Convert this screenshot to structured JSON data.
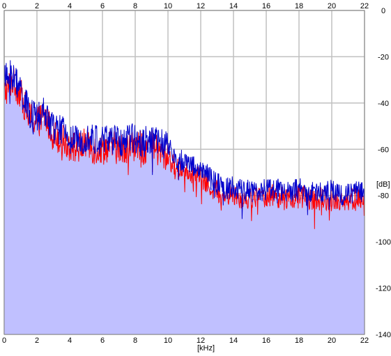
{
  "chart_data": {
    "type": "line",
    "title": "",
    "xlabel": "[kHz]",
    "ylabel": "[dB]",
    "xlim": [
      0,
      22
    ],
    "ylim": [
      -140,
      0
    ],
    "x_ticks": [
      "0",
      "2",
      "4",
      "6",
      "8",
      "10",
      "12",
      "14",
      "16",
      "18",
      "20",
      "22"
    ],
    "y_ticks": [
      "0",
      "-20",
      "-40",
      "-60",
      "-80",
      "-100",
      "-120",
      "-140"
    ],
    "grid": true,
    "legend": "none",
    "series": [
      {
        "color": "#ff0000",
        "x": [
          0,
          0.5,
          1,
          1.5,
          2,
          2.5,
          3,
          3.5,
          4,
          4.5,
          5,
          5.5,
          6,
          6.5,
          7,
          7.5,
          8,
          8.5,
          9,
          9.5,
          10,
          10.5,
          11,
          11.5,
          12,
          12.5,
          13,
          13.5,
          14,
          14.5,
          15,
          15.5,
          16,
          16.5,
          17,
          17.5,
          18,
          18.5,
          19,
          19.5,
          20,
          20.5,
          21,
          21.5,
          22
        ],
        "values": [
          -36,
          -30,
          -36,
          -46,
          -48,
          -46,
          -54,
          -55,
          -58,
          -60,
          -57,
          -60,
          -60,
          -58,
          -60,
          -59,
          -58,
          -60,
          -58,
          -62,
          -63,
          -69,
          -68,
          -70,
          -72,
          -76,
          -78,
          -80,
          -79,
          -81,
          -81,
          -81,
          -80,
          -80,
          -81,
          -82,
          -80,
          -81,
          -82,
          -81,
          -82,
          -82,
          -82,
          -81,
          -84
        ]
      },
      {
        "color": "#0000cc",
        "x": [
          0,
          0.5,
          1,
          1.5,
          2,
          2.5,
          3,
          3.5,
          4,
          4.5,
          5,
          5.5,
          6,
          6.5,
          7,
          7.5,
          8,
          8.5,
          9,
          9.5,
          10,
          10.5,
          11,
          11.5,
          12,
          12.5,
          13,
          13.5,
          14,
          14.5,
          15,
          15.5,
          16,
          16.5,
          17,
          17.5,
          18,
          18.5,
          19,
          19.5,
          20,
          20.5,
          21,
          21.5,
          22
        ],
        "values": [
          -30,
          -28,
          -34,
          -44,
          -47,
          -44,
          -51,
          -52,
          -55,
          -57,
          -54,
          -56,
          -56,
          -55,
          -57,
          -56,
          -55,
          -57,
          -55,
          -58,
          -58,
          -66,
          -64,
          -67,
          -69,
          -72,
          -75,
          -77,
          -76,
          -78,
          -78,
          -78,
          -77,
          -77,
          -78,
          -79,
          -77,
          -78,
          -79,
          -78,
          -78,
          -79,
          -79,
          -78,
          -79
        ]
      }
    ]
  }
}
